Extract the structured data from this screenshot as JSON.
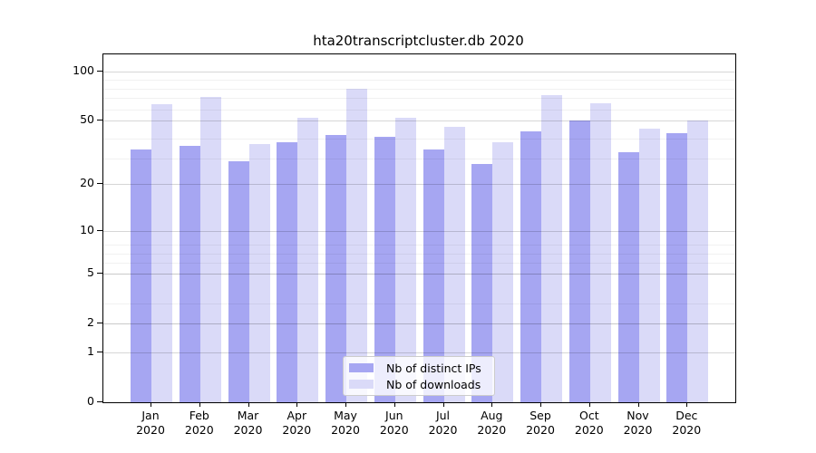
{
  "title": "hta20transcriptcluster.db 2020",
  "colors": {
    "distinct_ips_bar": "#a6a6f2",
    "downloads_bar": "#dadaf8",
    "spine": "#000000",
    "major_grid": "#d6d6d6",
    "minor_grid": "#efefef",
    "legend_border": "#cccccc"
  },
  "chart_data": {
    "type": "bar",
    "title": "hta20transcriptcluster.db 2020",
    "scale": "log10(1+y)",
    "categories": [
      "Jan",
      "Feb",
      "Mar",
      "Apr",
      "May",
      "Jun",
      "Jul",
      "Aug",
      "Sep",
      "Oct",
      "Nov",
      "Dec"
    ],
    "year_label": "2020",
    "series": [
      {
        "name": "Nb of distinct IPs",
        "color": "#a6a6f2",
        "values": [
          33,
          35,
          28,
          37,
          41,
          40,
          33,
          27,
          43,
          50,
          32,
          42
        ]
      },
      {
        "name": "Nb of downloads",
        "color": "#dadaf8",
        "values": [
          63,
          70,
          36,
          52,
          79,
          52,
          46,
          37,
          72,
          64,
          45,
          50
        ]
      }
    ],
    "xlabel": "",
    "ylabel": "",
    "ylim": [
      0,
      128
    ],
    "yticks": [
      0,
      1,
      2,
      5,
      10,
      20,
      50,
      100
    ],
    "ytick_labels": [
      "0",
      "1",
      "2",
      "5",
      "10",
      "20",
      "50",
      "100"
    ],
    "minor_gridlines": [
      2,
      3,
      5,
      6,
      7,
      8,
      29,
      39,
      59,
      69,
      79,
      89
    ],
    "grid": true,
    "legend_position": "lower center"
  }
}
